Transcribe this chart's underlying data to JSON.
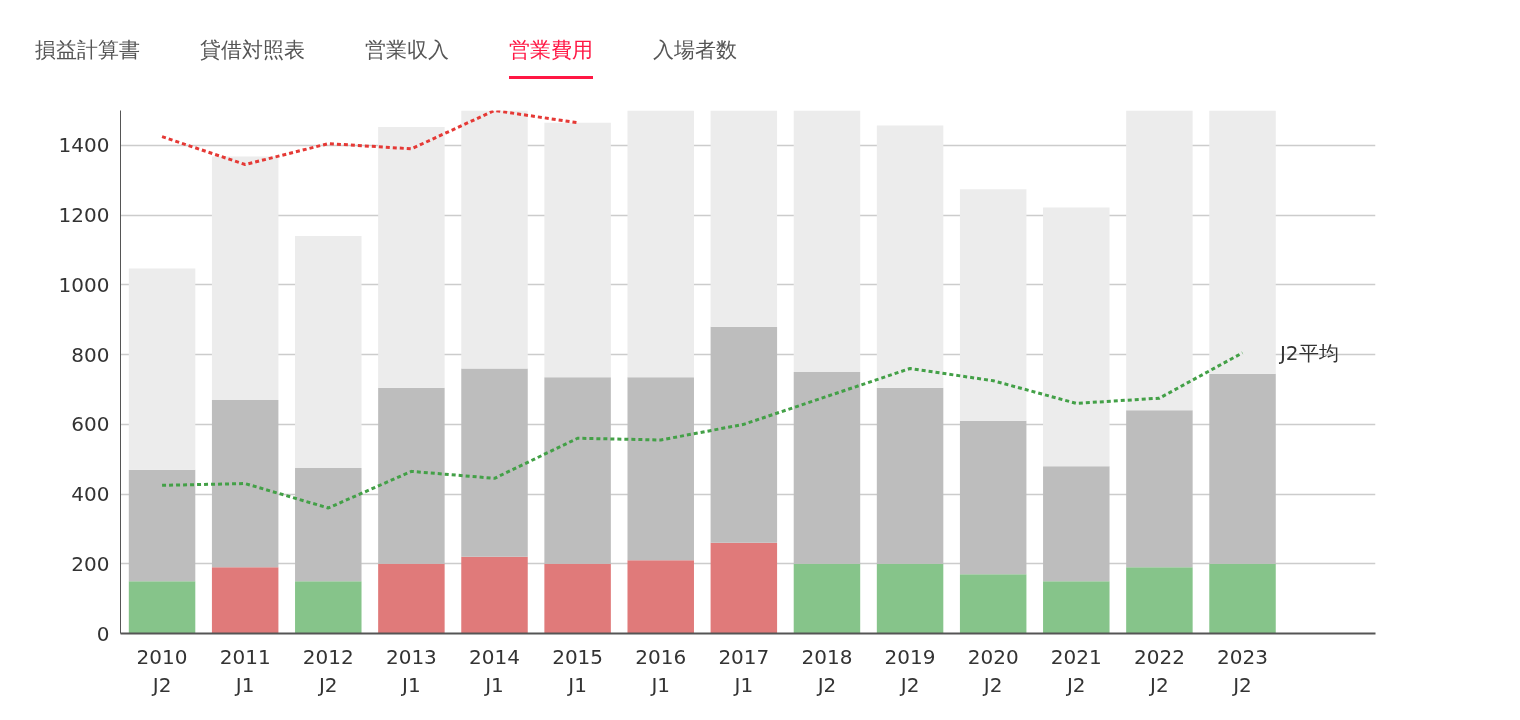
{
  "chart_data": {
    "type": "bar",
    "annotations": [
      "損益計算書",
      "貸借対照表",
      "営業収入",
      "営業費用",
      "入場者数"
    ],
    "categories": [
      "2010\nJ2",
      "2011\nJ1",
      "2012\nJ2",
      "2013\nJ1",
      "2014\nJ1",
      "2015\nJ1",
      "2016\nJ1",
      "2017\nJ1",
      "2018\nJ2",
      "2019\nJ2",
      "2020\nJ2",
      "2021\nJ2",
      "2022\nJ2",
      "2023\nJ2"
    ],
    "stacked": true,
    "series": [
      {
        "colors": [
          "#86c48a",
          "#e07a7a",
          "#86c48a",
          "#e07a7a",
          "#e07a7a",
          "#e07a7a",
          "#e07a7a",
          "#e07a7a",
          "#86c48a",
          "#86c48a",
          "#86c48a",
          "#86c48a",
          "#86c48a",
          "#86c48a"
        ],
        "values": [
          150,
          190,
          150,
          200,
          220,
          200,
          210,
          260,
          200,
          200,
          170,
          150,
          190,
          200
        ]
      },
      {
        "color": "#bdbdbd",
        "values": [
          320,
          480,
          325,
          505,
          540,
          535,
          525,
          620,
          550,
          505,
          440,
          330,
          450,
          545
        ]
      },
      {
        "color": "#ececec",
        "values": [
          577,
          698,
          665,
          748,
          740,
          730,
          765,
          620,
          750,
          752,
          664,
          742,
          860,
          755
        ]
      },
      {
        "type": "line",
        "color": "#e53935",
        "values": [
          1425,
          1345,
          1405,
          1390,
          1500,
          1465,
          null,
          null,
          null,
          null,
          null,
          null,
          null,
          null
        ]
      },
      {
        "type": "line",
        "name": "J2平均",
        "color": "#43a047",
        "values": [
          425,
          430,
          360,
          465,
          445,
          560,
          555,
          600,
          680,
          760,
          725,
          660,
          675,
          805
        ]
      }
    ],
    "ylim": [
      0,
      1500
    ],
    "yticks": [
      0,
      200,
      400,
      600,
      800,
      1000,
      1200,
      1400
    ],
    "grid": "y",
    "line_style": "dashed"
  }
}
